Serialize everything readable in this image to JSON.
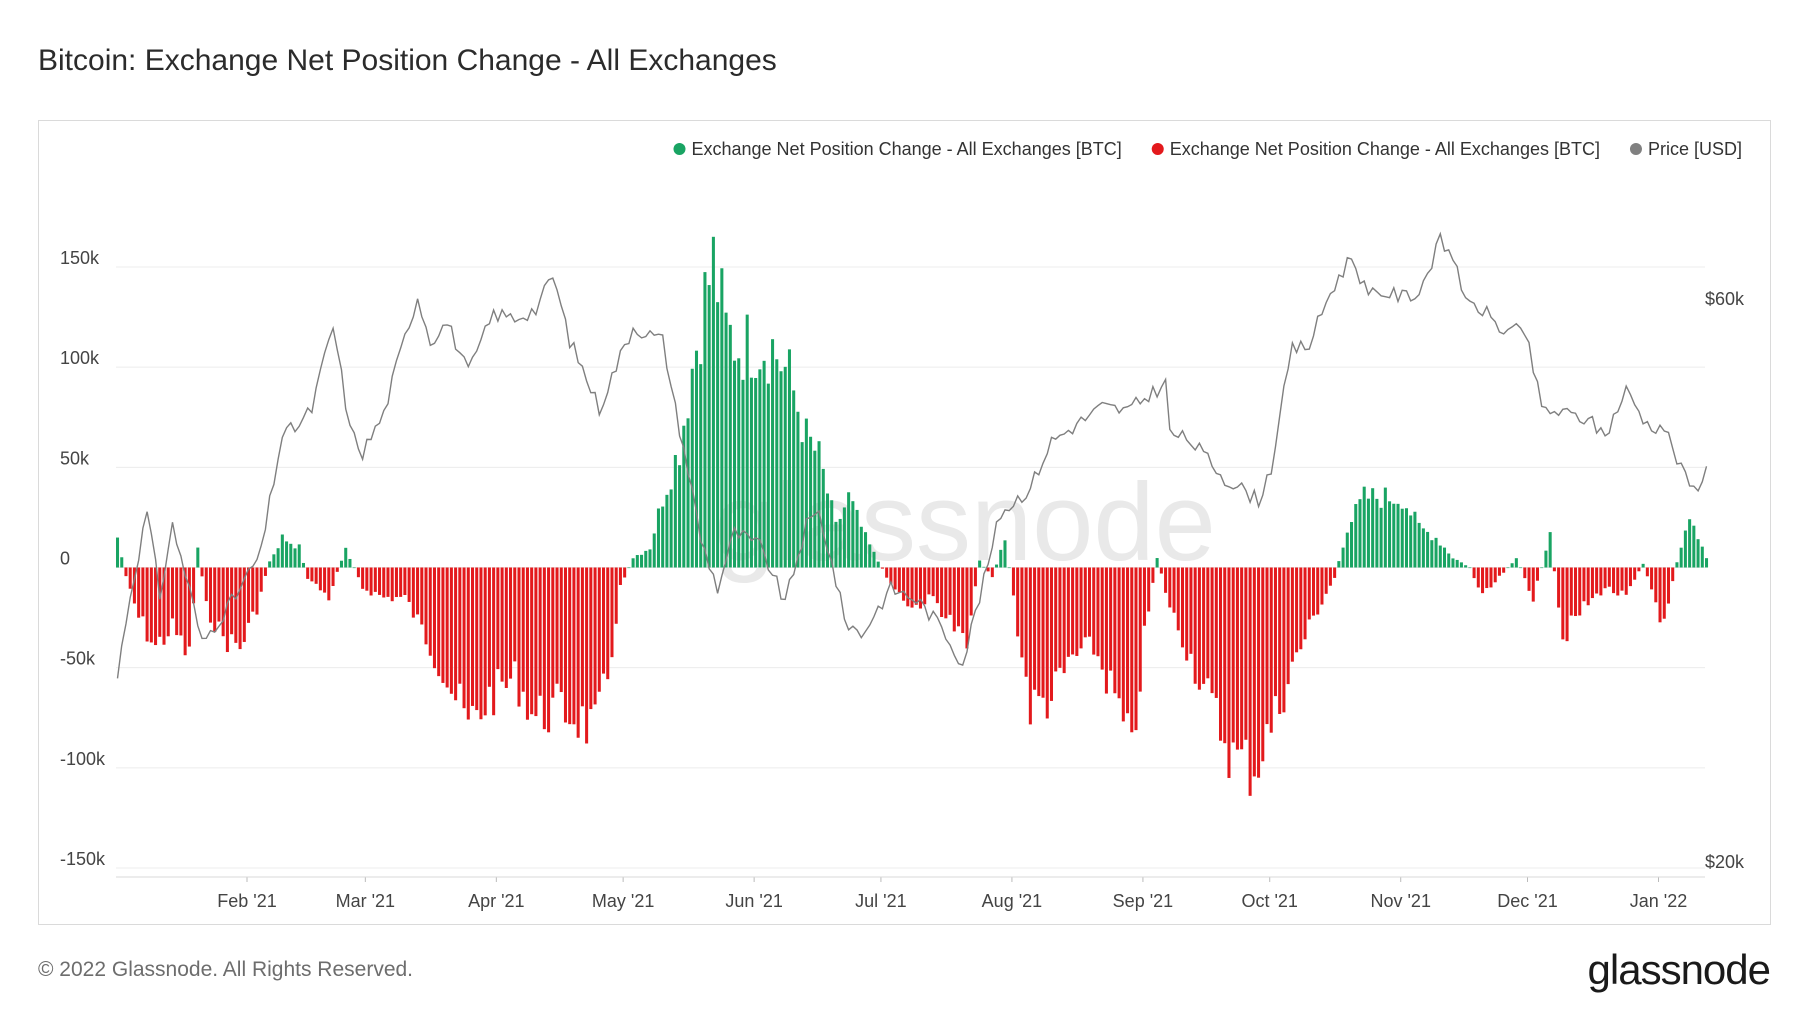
{
  "page": {
    "title": "Bitcoin: Exchange Net Position Change - All Exchanges",
    "copyright": "© 2022 Glassnode. All Rights Reserved.",
    "brand": "glassnode",
    "watermark": "glassnode"
  },
  "chart_data": {
    "type": "bar",
    "title": "Bitcoin: Exchange Net Position Change - All Exchanges",
    "legend": [
      {
        "label": "Exchange Net Position Change - All Exchanges [BTC]",
        "color": "#19a463"
      },
      {
        "label": "Exchange Net Position Change - All Exchanges [BTC]",
        "color": "#e3191c"
      },
      {
        "label": "Price [USD]",
        "color": "#808080"
      }
    ],
    "legend_position": "top-right",
    "colors": {
      "positive": "#19a463",
      "negative": "#e3191c",
      "price": "#7f7f7f",
      "grid": "#ececec"
    },
    "y_left": {
      "ticks": [
        150000,
        100000,
        50000,
        0,
        -50000,
        -100000,
        -150000
      ],
      "tick_labels": [
        "150k",
        "100k",
        "50k",
        "0",
        "-50k",
        "-100k",
        "-150k"
      ],
      "range": [
        -150000,
        150000
      ]
    },
    "y_right": {
      "ticks": [
        60000,
        20000
      ],
      "tick_labels": [
        "$60k",
        "$20k"
      ],
      "scale": "log"
    },
    "x_axis": {
      "start": "2021-01-01",
      "end": "2022-01-12",
      "ticks": [
        {
          "date": "2021-02-01",
          "label": "Feb '21"
        },
        {
          "date": "2021-03-01",
          "label": "Mar '21"
        },
        {
          "date": "2021-04-01",
          "label": "Apr '21"
        },
        {
          "date": "2021-05-01",
          "label": "May '21"
        },
        {
          "date": "2021-06-01",
          "label": "Jun '21"
        },
        {
          "date": "2021-07-01",
          "label": "Jul '21"
        },
        {
          "date": "2021-08-01",
          "label": "Aug '21"
        },
        {
          "date": "2021-09-01",
          "label": "Sep '21"
        },
        {
          "date": "2021-10-01",
          "label": "Oct '21"
        },
        {
          "date": "2021-11-01",
          "label": "Nov '21"
        },
        {
          "date": "2021-12-01",
          "label": "Dec '21"
        },
        {
          "date": "2022-01-01",
          "label": "Jan '22"
        }
      ]
    },
    "net_position_keypoints_btc": [
      [
        "2021-01-01",
        15000
      ],
      [
        "2021-01-03",
        -5000
      ],
      [
        "2021-01-06",
        -25000
      ],
      [
        "2021-01-10",
        -40000
      ],
      [
        "2021-01-14",
        -30000
      ],
      [
        "2021-01-18",
        -45000
      ],
      [
        "2021-01-20",
        10000
      ],
      [
        "2021-01-22",
        -20000
      ],
      [
        "2021-01-26",
        -35000
      ],
      [
        "2021-01-30",
        -40000
      ],
      [
        "2021-02-03",
        -20000
      ],
      [
        "2021-02-06",
        3000
      ],
      [
        "2021-02-09",
        15000
      ],
      [
        "2021-02-13",
        10000
      ],
      [
        "2021-02-15",
        -5000
      ],
      [
        "2021-02-20",
        -15000
      ],
      [
        "2021-02-24",
        10000
      ],
      [
        "2021-02-28",
        -10000
      ],
      [
        "2021-03-05",
        -15000
      ],
      [
        "2021-03-10",
        -15000
      ],
      [
        "2021-03-15",
        -35000
      ],
      [
        "2021-03-20",
        -55000
      ],
      [
        "2021-03-25",
        -80000
      ],
      [
        "2021-03-30",
        -65000
      ],
      [
        "2021-04-05",
        -55000
      ],
      [
        "2021-04-10",
        -75000
      ],
      [
        "2021-04-15",
        -70000
      ],
      [
        "2021-04-20",
        -75000
      ],
      [
        "2021-04-24",
        -82000
      ],
      [
        "2021-04-27",
        -55000
      ],
      [
        "2021-04-30",
        -10000
      ],
      [
        "2021-05-03",
        5000
      ],
      [
        "2021-05-07",
        10000
      ],
      [
        "2021-05-10",
        35000
      ],
      [
        "2021-05-14",
        60000
      ],
      [
        "2021-05-17",
        100000
      ],
      [
        "2021-05-20",
        135000
      ],
      [
        "2021-05-22",
        152000
      ],
      [
        "2021-05-25",
        118000
      ],
      [
        "2021-05-28",
        110000
      ],
      [
        "2021-06-01",
        112000
      ],
      [
        "2021-06-05",
        110000
      ],
      [
        "2021-06-09",
        95000
      ],
      [
        "2021-06-13",
        65000
      ],
      [
        "2021-06-16",
        55000
      ],
      [
        "2021-06-20",
        20000
      ],
      [
        "2021-06-23",
        35000
      ],
      [
        "2021-06-27",
        15000
      ],
      [
        "2021-06-30",
        3000
      ],
      [
        "2021-07-03",
        -8000
      ],
      [
        "2021-07-08",
        -20000
      ],
      [
        "2021-07-13",
        -15000
      ],
      [
        "2021-07-18",
        -30000
      ],
      [
        "2021-07-21",
        -40000
      ],
      [
        "2021-07-24",
        3000
      ],
      [
        "2021-07-27",
        -5000
      ],
      [
        "2021-07-30",
        15000
      ],
      [
        "2021-08-02",
        -30000
      ],
      [
        "2021-08-05",
        -70000
      ],
      [
        "2021-08-10",
        -65000
      ],
      [
        "2021-08-15",
        -45000
      ],
      [
        "2021-08-20",
        -40000
      ],
      [
        "2021-08-25",
        -65000
      ],
      [
        "2021-08-29",
        -95000
      ],
      [
        "2021-09-01",
        -35000
      ],
      [
        "2021-09-04",
        5000
      ],
      [
        "2021-09-07",
        -20000
      ],
      [
        "2021-09-12",
        -45000
      ],
      [
        "2021-09-17",
        -70000
      ],
      [
        "2021-09-22",
        -95000
      ],
      [
        "2021-09-27",
        -100000
      ],
      [
        "2021-10-01",
        -80000
      ],
      [
        "2021-10-06",
        -50000
      ],
      [
        "2021-10-11",
        -25000
      ],
      [
        "2021-10-16",
        -5000
      ],
      [
        "2021-10-19",
        20000
      ],
      [
        "2021-10-23",
        35000
      ],
      [
        "2021-10-28",
        35000
      ],
      [
        "2021-11-01",
        35000
      ],
      [
        "2021-11-05",
        20000
      ],
      [
        "2021-11-09",
        15000
      ],
      [
        "2021-11-13",
        5000
      ],
      [
        "2021-11-17",
        0
      ],
      [
        "2021-11-20",
        -15000
      ],
      [
        "2021-11-24",
        -5000
      ],
      [
        "2021-11-28",
        5000
      ],
      [
        "2021-12-02",
        -15000
      ],
      [
        "2021-12-06",
        15000
      ],
      [
        "2021-12-09",
        -35000
      ],
      [
        "2021-12-14",
        -20000
      ],
      [
        "2021-12-19",
        -10000
      ],
      [
        "2021-12-24",
        -15000
      ],
      [
        "2021-12-28",
        2000
      ],
      [
        "2022-01-02",
        -30000
      ],
      [
        "2022-01-05",
        3000
      ],
      [
        "2022-01-08",
        28000
      ],
      [
        "2022-01-12",
        5000
      ]
    ],
    "price_keypoints_usd": [
      [
        "2021-01-01",
        29000
      ],
      [
        "2021-01-03",
        32500
      ],
      [
        "2021-01-08",
        40000
      ],
      [
        "2021-01-11",
        34000
      ],
      [
        "2021-01-14",
        39000
      ],
      [
        "2021-01-21",
        31000
      ],
      [
        "2021-01-25",
        32500
      ],
      [
        "2021-01-29",
        34000
      ],
      [
        "2021-02-04",
        37000
      ],
      [
        "2021-02-09",
        46500
      ],
      [
        "2021-02-13",
        47500
      ],
      [
        "2021-02-16",
        49000
      ],
      [
        "2021-02-21",
        57500
      ],
      [
        "2021-02-25",
        47000
      ],
      [
        "2021-02-28",
        45000
      ],
      [
        "2021-03-05",
        48500
      ],
      [
        "2021-03-13",
        61000
      ],
      [
        "2021-03-16",
        56000
      ],
      [
        "2021-03-20",
        58000
      ],
      [
        "2021-03-25",
        52500
      ],
      [
        "2021-03-31",
        59000
      ],
      [
        "2021-04-05",
        58500
      ],
      [
        "2021-04-10",
        59500
      ],
      [
        "2021-04-14",
        63500
      ],
      [
        "2021-04-18",
        56000
      ],
      [
        "2021-04-25",
        49000
      ],
      [
        "2021-05-03",
        57500
      ],
      [
        "2021-05-10",
        56000
      ],
      [
        "2021-05-13",
        49000
      ],
      [
        "2021-05-19",
        38000
      ],
      [
        "2021-05-23",
        34500
      ],
      [
        "2021-05-27",
        38500
      ],
      [
        "2021-06-02",
        37500
      ],
      [
        "2021-06-08",
        33500
      ],
      [
        "2021-06-13",
        39000
      ],
      [
        "2021-06-16",
        40000
      ],
      [
        "2021-06-22",
        32500
      ],
      [
        "2021-06-26",
        31500
      ],
      [
        "2021-07-03",
        34500
      ],
      [
        "2021-07-09",
        33800
      ],
      [
        "2021-07-15",
        32000
      ],
      [
        "2021-07-20",
        29800
      ],
      [
        "2021-07-25",
        35000
      ],
      [
        "2021-07-29",
        40000
      ],
      [
        "2021-08-05",
        42000
      ],
      [
        "2021-08-10",
        46000
      ],
      [
        "2021-08-14",
        47000
      ],
      [
        "2021-08-22",
        49200
      ],
      [
        "2021-08-28",
        48800
      ],
      [
        "2021-09-06",
        51500
      ],
      [
        "2021-09-07",
        46800
      ],
      [
        "2021-09-12",
        46000
      ],
      [
        "2021-09-20",
        42800
      ],
      [
        "2021-09-28",
        41000
      ],
      [
        "2021-10-01",
        43700
      ],
      [
        "2021-10-06",
        55000
      ],
      [
        "2021-10-10",
        55500
      ],
      [
        "2021-10-15",
        61500
      ],
      [
        "2021-10-20",
        66000
      ],
      [
        "2021-10-24",
        61000
      ],
      [
        "2021-10-28",
        61500
      ],
      [
        "2021-11-01",
        61000
      ],
      [
        "2021-11-05",
        61500
      ],
      [
        "2021-11-10",
        68000
      ],
      [
        "2021-11-14",
        65000
      ],
      [
        "2021-11-16",
        60000
      ],
      [
        "2021-11-20",
        59500
      ],
      [
        "2021-11-25",
        57000
      ],
      [
        "2021-11-30",
        57000
      ],
      [
        "2021-12-04",
        49000
      ],
      [
        "2021-12-10",
        48500
      ],
      [
        "2021-12-15",
        48000
      ],
      [
        "2021-12-19",
        46500
      ],
      [
        "2021-12-24",
        50800
      ],
      [
        "2021-12-29",
        47500
      ],
      [
        "2022-01-02",
        47300
      ],
      [
        "2022-01-06",
        43500
      ],
      [
        "2022-01-09",
        41800
      ],
      [
        "2022-01-12",
        43500
      ]
    ]
  }
}
